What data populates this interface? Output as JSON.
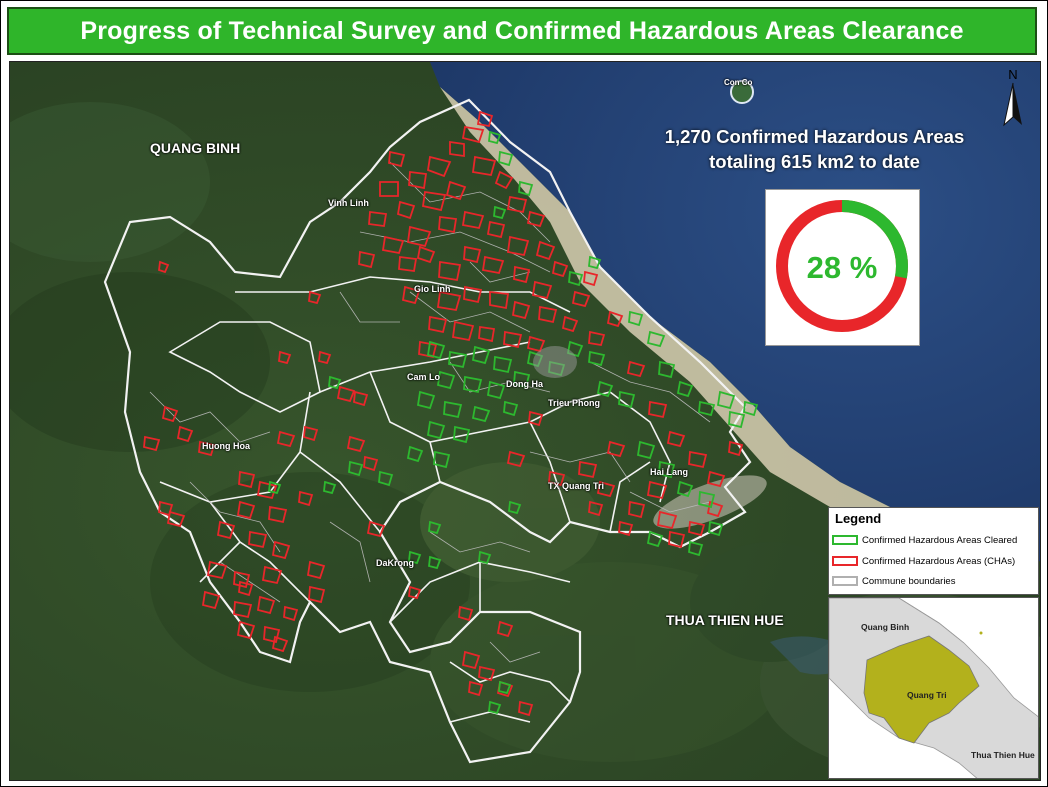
{
  "title": "Progress of Technical Survey and Confirmed Hazardous Areas Clearance",
  "stats": {
    "line1": "1,270 Confirmed Hazardous Areas",
    "line2": "totaling 615 km2 to date",
    "percent_label": "28 %",
    "cleared_fraction": 0.28,
    "cleared_color": "#2db82f",
    "remaining_color": "#e8262a"
  },
  "map_labels": {
    "con_co": "Con Co",
    "quang_binh": "QUANG BINH",
    "thua_thien_hue": "THUA THIEN HUE",
    "districts": {
      "vinh_linh": "Vinh Linh",
      "gio_linh": "Gio Linh",
      "cam_lo": "Cam Lo",
      "dong_ha": "Dong Ha",
      "trieu_phong": "Trieu Phong",
      "huong_hoa": "Huong Hoa",
      "tx_quang_tri": "TX Quang Tri",
      "hai_lang": "Hai Lang",
      "dakrong": "DaKrong"
    }
  },
  "north_arrow": {
    "letter": "N",
    "icon": "north-arrow-icon"
  },
  "legend": {
    "title": "Legend",
    "items": [
      {
        "label": "Confirmed Hazardous Areas Cleared",
        "color": "#2db82f"
      },
      {
        "label": "Confirmed Hazardous Areas (CHAs)",
        "color": "#e8262a"
      },
      {
        "label": "Commune boundaries",
        "color": "#b0b0b0"
      }
    ]
  },
  "inset": {
    "quang_binh": "Quang Binh",
    "quang_tri": "Quang Tri",
    "thua_thien_hue": "Thua Thien Hue",
    "highlight_color": "#b3b11c"
  }
}
